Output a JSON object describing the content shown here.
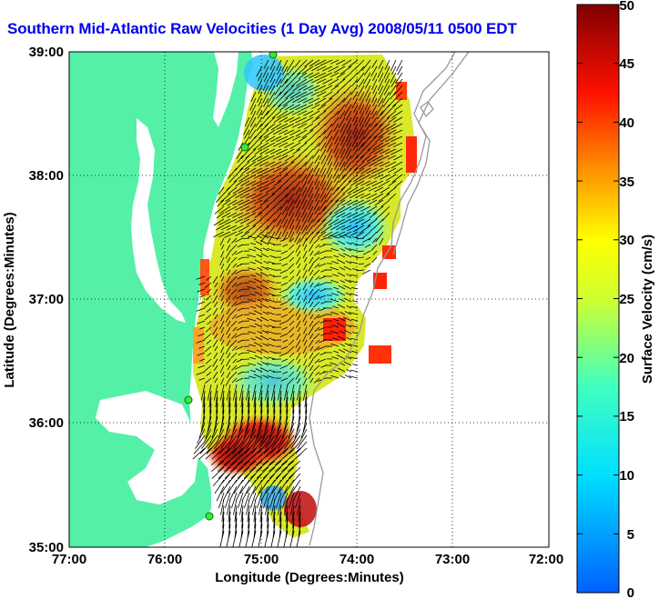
{
  "title": "Southern Mid-Atlantic Raw Velocities (1 Day Avg) 2008/05/11 0500 EDT",
  "map": {
    "xlabel": "Longitude (Degrees:Minutes)",
    "ylabel": "Latitude (Degrees:Minutes)",
    "x_ticks": [
      "77:00",
      "76:00",
      "75:00",
      "74:00",
      "73:00",
      "72:00"
    ],
    "y_ticks": [
      "39:00",
      "38:00",
      "37:00",
      "36:00",
      "35:00"
    ],
    "land_color": "#55f0a8",
    "grid": "dotted"
  },
  "colorbar": {
    "label": "Surface Velocity (cm/s)",
    "ticks": [
      "50",
      "45",
      "40",
      "35",
      "30",
      "25",
      "20",
      "15",
      "10",
      "5",
      "0"
    ],
    "range": [
      0,
      50
    ],
    "colormap": "jet"
  }
}
